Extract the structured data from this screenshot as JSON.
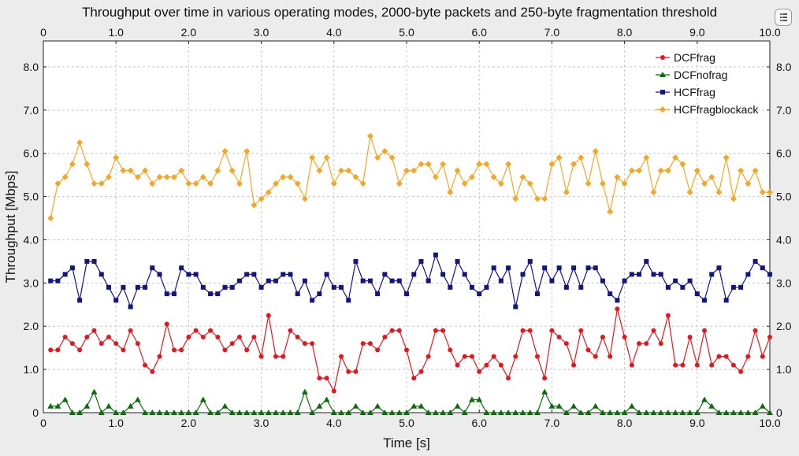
{
  "chart_data": {
    "type": "line",
    "title": "Throughput over time in various operating modes, 2000-byte packets and 250-byte fragmentation threshold",
    "xlabel": "Time [s]",
    "ylabel": "Throughput [Mbps]",
    "xlim": [
      0,
      10
    ],
    "ylim": [
      0,
      8.6
    ],
    "x_ticks": [
      "0",
      "1.0",
      "2.0",
      "3.0",
      "4.0",
      "5.0",
      "6.0",
      "7.0",
      "8.0",
      "9.0",
      "10.0"
    ],
    "y_ticks": [
      "0",
      "1.0",
      "2.0",
      "3.0",
      "4.0",
      "5.0",
      "6.0",
      "7.0",
      "8.0"
    ],
    "grid": true,
    "legend_position": "top-right",
    "x": [
      0.1,
      0.2,
      0.3,
      0.4,
      0.5,
      0.6,
      0.7,
      0.8,
      0.9,
      1.0,
      1.1,
      1.2,
      1.3,
      1.4,
      1.5,
      1.6,
      1.7,
      1.8,
      1.9,
      2.0,
      2.1,
      2.2,
      2.3,
      2.4,
      2.5,
      2.6,
      2.7,
      2.8,
      2.9,
      3.0,
      3.1,
      3.2,
      3.3,
      3.4,
      3.5,
      3.6,
      3.7,
      3.8,
      3.9,
      4.0,
      4.1,
      4.2,
      4.3,
      4.4,
      4.5,
      4.6,
      4.7,
      4.8,
      4.9,
      5.0,
      5.1,
      5.2,
      5.3,
      5.4,
      5.5,
      5.6,
      5.7,
      5.8,
      5.9,
      6.0,
      6.1,
      6.2,
      6.3,
      6.4,
      6.5,
      6.6,
      6.7,
      6.8,
      6.9,
      7.0,
      7.1,
      7.2,
      7.3,
      7.4,
      7.5,
      7.6,
      7.7,
      7.8,
      7.9,
      8.0,
      8.1,
      8.2,
      8.3,
      8.4,
      8.5,
      8.6,
      8.7,
      8.8,
      8.9,
      9.0,
      9.1,
      9.2,
      9.3,
      9.4,
      9.5,
      9.6,
      9.7,
      9.8,
      9.9,
      10.0
    ],
    "series": [
      {
        "name": "DCFfrag",
        "color": "#e8161c",
        "marker": "circle",
        "values": [
          1.45,
          1.45,
          1.75,
          1.6,
          1.45,
          1.75,
          1.9,
          1.6,
          1.75,
          1.6,
          1.45,
          1.9,
          1.6,
          1.1,
          0.95,
          1.3,
          2.05,
          1.45,
          1.45,
          1.75,
          1.9,
          1.75,
          1.9,
          1.75,
          1.45,
          1.6,
          1.75,
          1.45,
          1.75,
          1.3,
          2.25,
          1.3,
          1.3,
          1.9,
          1.75,
          1.6,
          1.6,
          0.8,
          0.8,
          0.5,
          1.3,
          0.95,
          0.95,
          1.6,
          1.6,
          1.45,
          1.75,
          1.9,
          1.9,
          1.45,
          0.8,
          0.95,
          1.3,
          1.9,
          1.9,
          1.45,
          1.1,
          1.3,
          1.3,
          0.95,
          1.1,
          1.3,
          1.1,
          0.8,
          1.3,
          1.9,
          1.9,
          1.3,
          0.8,
          1.9,
          1.75,
          1.6,
          1.1,
          1.9,
          1.45,
          1.3,
          1.75,
          1.3,
          2.4,
          1.75,
          1.1,
          1.6,
          1.6,
          1.9,
          1.6,
          2.25,
          1.1,
          1.1,
          1.75,
          1.1,
          1.9,
          1.1,
          1.3,
          1.3,
          1.1,
          0.95,
          1.3,
          1.9,
          1.3,
          1.75
        ]
      },
      {
        "name": "DCFnofrag",
        "color": "#0a6e0a",
        "marker": "triangle",
        "values": [
          0.15,
          0.15,
          0.3,
          0,
          0,
          0.15,
          0.48,
          0,
          0.15,
          0,
          0,
          0.15,
          0.3,
          0,
          0,
          0,
          0,
          0,
          0,
          0,
          0,
          0.3,
          0,
          0,
          0.15,
          0,
          0,
          0,
          0,
          0,
          0,
          0,
          0,
          0,
          0,
          0.48,
          0,
          0.15,
          0.3,
          0,
          0,
          0,
          0.15,
          0,
          0,
          0.15,
          0,
          0,
          0,
          0,
          0.15,
          0.15,
          0,
          0,
          0,
          0,
          0.15,
          0,
          0.3,
          0.3,
          0,
          0,
          0,
          0,
          0,
          0,
          0,
          0,
          0.48,
          0.15,
          0.15,
          0,
          0.15,
          0,
          0,
          0.15,
          0,
          0,
          0,
          0,
          0.15,
          0,
          0,
          0,
          0,
          0,
          0,
          0,
          0,
          0,
          0.3,
          0.15,
          0,
          0,
          0,
          0,
          0,
          0,
          0.15,
          0
        ]
      },
      {
        "name": "HCFfrag",
        "color": "#141483",
        "marker": "square",
        "values": [
          3.05,
          3.05,
          3.2,
          3.35,
          2.6,
          3.5,
          3.5,
          3.2,
          2.9,
          2.6,
          2.9,
          2.45,
          2.9,
          2.9,
          3.35,
          3.2,
          2.75,
          2.75,
          3.35,
          3.2,
          3.2,
          2.9,
          2.75,
          2.75,
          2.9,
          2.9,
          3.05,
          3.2,
          3.2,
          2.9,
          3.05,
          3.05,
          3.2,
          3.2,
          2.75,
          3.05,
          2.6,
          2.75,
          3.2,
          2.9,
          2.9,
          2.6,
          3.5,
          3.05,
          3.05,
          2.75,
          3.2,
          3.05,
          3.05,
          2.75,
          3.2,
          3.5,
          3.05,
          3.65,
          3.2,
          2.9,
          3.5,
          3.2,
          2.9,
          2.75,
          2.9,
          3.35,
          3.05,
          3.35,
          2.45,
          3.2,
          3.5,
          2.75,
          3.35,
          3.05,
          3.35,
          2.9,
          3.35,
          2.9,
          3.35,
          3.35,
          3.05,
          2.75,
          2.6,
          3.05,
          3.2,
          3.2,
          3.5,
          3.2,
          3.2,
          2.9,
          3.05,
          2.9,
          3.05,
          2.75,
          2.6,
          3.2,
          3.35,
          2.6,
          2.9,
          2.9,
          3.2,
          3.5,
          3.35,
          3.2
        ]
      },
      {
        "name": "HCFfragblockack",
        "color": "#f6a623",
        "marker": "diamond",
        "values": [
          4.5,
          5.3,
          5.45,
          5.75,
          6.25,
          5.75,
          5.3,
          5.3,
          5.45,
          5.9,
          5.6,
          5.6,
          5.45,
          5.6,
          5.3,
          5.45,
          5.45,
          5.45,
          5.6,
          5.3,
          5.3,
          5.45,
          5.3,
          5.6,
          6.05,
          5.6,
          5.3,
          6.05,
          4.8,
          4.95,
          5.1,
          5.3,
          5.45,
          5.45,
          5.3,
          4.95,
          5.9,
          5.6,
          5.9,
          5.3,
          5.6,
          5.6,
          5.45,
          5.3,
          6.4,
          5.9,
          6.05,
          5.9,
          5.3,
          5.6,
          5.6,
          5.75,
          5.75,
          5.45,
          5.75,
          5.1,
          5.6,
          5.3,
          5.45,
          5.75,
          5.75,
          5.45,
          5.3,
          5.75,
          4.95,
          5.45,
          5.3,
          4.95,
          4.95,
          5.75,
          5.9,
          5.1,
          5.75,
          5.9,
          5.3,
          6.05,
          5.3,
          4.65,
          5.45,
          5.3,
          5.6,
          5.6,
          5.9,
          5.1,
          5.6,
          5.6,
          5.9,
          5.75,
          5.1,
          5.6,
          5.3,
          5.45,
          5.1,
          5.9,
          4.95,
          5.6,
          5.3,
          5.6,
          5.1,
          5.1
        ]
      }
    ]
  }
}
